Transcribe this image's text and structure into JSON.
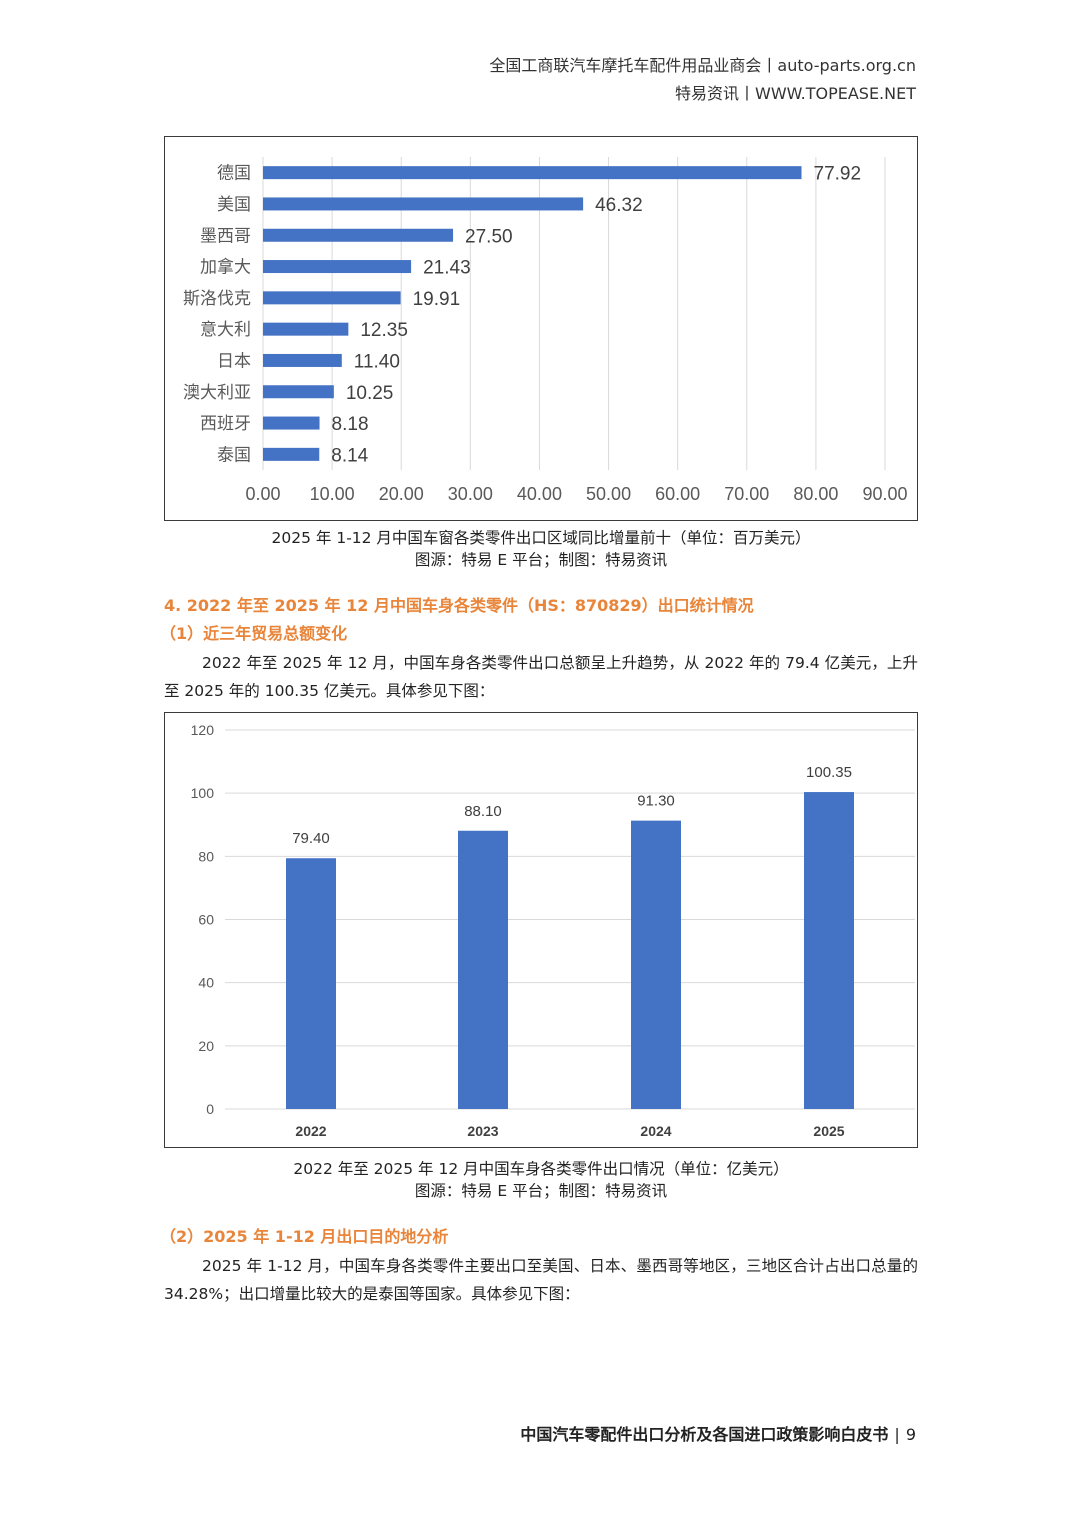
{
  "header": {
    "line1": "全国工商联汽车摩托车配件用品业商会丨auto-parts.org.cn",
    "line2": "特易资讯丨WWW.TOPEASE.NET"
  },
  "charts": {
    "hbar": {
      "type": "bar",
      "orientation": "horizontal",
      "categories": [
        "德国",
        "美国",
        "墨西哥",
        "加拿大",
        "斯洛伐克",
        "意大利",
        "日本",
        "澳大利亚",
        "西班牙",
        "泰国"
      ],
      "values": [
        77.92,
        46.32,
        27.5,
        21.43,
        19.91,
        12.35,
        11.4,
        10.25,
        8.18,
        8.14
      ],
      "value_labels": [
        "77.92",
        "46.32",
        "27.50",
        "21.43",
        "19.91",
        "12.35",
        "11.40",
        "10.25",
        "8.18",
        "8.14"
      ],
      "xlim": [
        0,
        90
      ],
      "x_ticks": [
        "0.00",
        "10.00",
        "20.00",
        "30.00",
        "40.00",
        "50.00",
        "60.00",
        "70.00",
        "80.00",
        "90.00"
      ],
      "bar_color": "#4472c4",
      "grid": true
    },
    "vbar": {
      "type": "bar",
      "orientation": "vertical",
      "categories": [
        "2022",
        "2023",
        "2024",
        "2025"
      ],
      "values": [
        79.4,
        88.1,
        91.3,
        100.35
      ],
      "value_labels": [
        "79.40",
        "88.10",
        "91.30",
        "100.35"
      ],
      "ylim": [
        0,
        120
      ],
      "y_ticks": [
        "0",
        "20",
        "40",
        "60",
        "80",
        "100",
        "120"
      ],
      "bar_color": "#4472c4",
      "grid": true
    }
  },
  "chart_data": [
    {
      "type": "bar",
      "categories": [
        "德国",
        "美国",
        "墨西哥",
        "加拿大",
        "斯洛伐克",
        "意大利",
        "日本",
        "澳大利亚",
        "西班牙",
        "泰国"
      ],
      "values": [
        77.92,
        46.32,
        27.5,
        21.43,
        19.91,
        12.35,
        11.4,
        10.25,
        8.18,
        8.14
      ],
      "title": "",
      "xlabel": "",
      "ylabel": "",
      "xlim": [
        0,
        90
      ]
    },
    {
      "type": "bar",
      "categories": [
        "2022",
        "2023",
        "2024",
        "2025"
      ],
      "values": [
        79.4,
        88.1,
        91.3,
        100.35
      ],
      "title": "",
      "xlabel": "",
      "ylabel": "",
      "ylim": [
        0,
        120
      ]
    }
  ],
  "caption1": {
    "line1": "2025 年 1-12 月中国车窗各类零件出口区域同比增量前十（单位：百万美元）",
    "line2": "图源：特易 E 平台；制图：特易资讯"
  },
  "section4": {
    "title": "4. 2022 年至 2025 年 12 月中国车身各类零件（HS：870829）出口统计情况",
    "sub1": "（1）近三年贸易总额变化",
    "para1": "2022 年至 2025 年 12 月，中国车身各类零件出口总额呈上升趋势，从 2022 年的 79.4 亿美元，上升至 2025 年的 100.35 亿美元。具体参见下图："
  },
  "caption2": {
    "line1": "2022 年至 2025 年 12 月中国车身各类零件出口情况（单位：亿美元）",
    "line2": "图源：特易 E 平台；制图：特易资讯"
  },
  "section4b": {
    "sub2": "（2）2025 年 1-12 月出口目的地分析",
    "para2": "2025 年 1-12 月，中国车身各类零件主要出口至美国、日本、墨西哥等地区，三地区合计占出口总量的 34.28%；出口增量比较大的是泰国等国家。具体参见下图："
  },
  "footer": {
    "title": "中国汽车零配件出口分析及各国进口政策影响白皮书",
    "separator": "|",
    "page": "9"
  }
}
